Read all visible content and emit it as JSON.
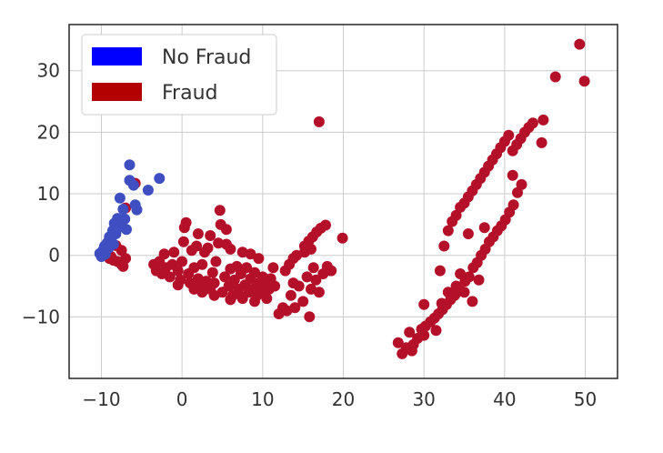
{
  "chart_data": {
    "type": "scatter",
    "title": "",
    "xlabel": "",
    "ylabel": "",
    "xlim": [
      -14,
      54
    ],
    "ylim": [
      -20,
      37.5
    ],
    "x_ticks": [
      -10,
      0,
      10,
      20,
      30,
      40,
      50
    ],
    "x_tick_labels": [
      "−10",
      "0",
      "10",
      "20",
      "30",
      "40",
      "50"
    ],
    "y_ticks": [
      -10,
      0,
      10,
      20,
      30
    ],
    "y_tick_labels": [
      "−10",
      "0",
      "10",
      "20",
      "30"
    ],
    "grid": true,
    "legend": {
      "placement": "top-left",
      "entries": [
        {
          "label": "No Fraud",
          "color": "#0000ff"
        },
        {
          "label": "Fraud",
          "color": "#b30000"
        }
      ]
    },
    "series": [
      {
        "name": "No Fraud",
        "color": "#3f4fc2",
        "points": [
          [
            -10.2,
            0.3
          ],
          [
            -10.0,
            -0.2
          ],
          [
            -9.8,
            0.8
          ],
          [
            -9.6,
            1.5
          ],
          [
            -9.5,
            0.2
          ],
          [
            -9.3,
            2.0
          ],
          [
            -9.1,
            1.2
          ],
          [
            -9.0,
            3.0
          ],
          [
            -8.8,
            2.5
          ],
          [
            -8.6,
            4.0
          ],
          [
            -8.5,
            1.8
          ],
          [
            -8.4,
            5.2
          ],
          [
            -8.2,
            3.5
          ],
          [
            -8.0,
            6.0
          ],
          [
            -7.9,
            4.5
          ],
          [
            -7.7,
            9.3
          ],
          [
            -7.5,
            5.5
          ],
          [
            -7.3,
            7.5
          ],
          [
            -7.1,
            5.9
          ],
          [
            -6.9,
            4.2
          ],
          [
            -6.5,
            14.7
          ],
          [
            -6.5,
            12.2
          ],
          [
            -6.0,
            11.4
          ],
          [
            -5.8,
            8.2
          ],
          [
            -5.6,
            7.4
          ],
          [
            -4.2,
            10.6
          ],
          [
            -2.8,
            12.5
          ]
        ]
      },
      {
        "name": "Fraud",
        "color": "#b5102a",
        "points": [
          [
            -9.5,
            0.5
          ],
          [
            -9.0,
            -0.5
          ],
          [
            -8.5,
            -0.8
          ],
          [
            -8.0,
            -1.0
          ],
          [
            -7.5,
            -1.5
          ],
          [
            -7.0,
            -0.5
          ],
          [
            -7.5,
            0.8
          ],
          [
            -8.2,
            1.6
          ],
          [
            -7.0,
            7.7
          ],
          [
            -5.8,
            11.7
          ],
          [
            -7.3,
            -1.8
          ],
          [
            -8.8,
            -0.2
          ],
          [
            -3.5,
            -1.5
          ],
          [
            -3.2,
            -2.5
          ],
          [
            -2.8,
            -1.0
          ],
          [
            -2.5,
            -3.0
          ],
          [
            -2.2,
            0.2
          ],
          [
            -2.0,
            -2.0
          ],
          [
            -1.5,
            -3.5
          ],
          [
            -1.2,
            -1.5
          ],
          [
            -1.0,
            0.5
          ],
          [
            -0.5,
            -2.5
          ],
          [
            -0.2,
            -4.0
          ],
          [
            0.0,
            -1.0
          ],
          [
            0.2,
            2.2
          ],
          [
            0.3,
            4.5
          ],
          [
            0.5,
            5.3
          ],
          [
            0.8,
            -3.0
          ],
          [
            1.0,
            -4.5
          ],
          [
            1.2,
            0.8
          ],
          [
            1.5,
            -2.0
          ],
          [
            1.8,
            1.5
          ],
          [
            2.0,
            -3.8
          ],
          [
            2.3,
            -5.0
          ],
          [
            2.5,
            -1.5
          ],
          [
            2.8,
            0.5
          ],
          [
            3.0,
            -4.2
          ],
          [
            3.2,
            1.2
          ],
          [
            3.5,
            -5.5
          ],
          [
            3.8,
            -2.8
          ],
          [
            4.0,
            -4.5
          ],
          [
            4.2,
            -1.0
          ],
          [
            4.5,
            2.0
          ],
          [
            4.7,
            7.3
          ],
          [
            4.8,
            5.0
          ],
          [
            5.0,
            -6.0
          ],
          [
            5.3,
            -3.5
          ],
          [
            5.5,
            1.8
          ],
          [
            5.8,
            -5.0
          ],
          [
            6.0,
            -2.2
          ],
          [
            6.3,
            -6.5
          ],
          [
            6.5,
            -4.0
          ],
          [
            6.8,
            -1.8
          ],
          [
            7.0,
            -5.5
          ],
          [
            7.3,
            -3.0
          ],
          [
            7.5,
            -6.8
          ],
          [
            7.8,
            -4.8
          ],
          [
            8.0,
            -2.0
          ],
          [
            8.3,
            -6.0
          ],
          [
            8.5,
            -3.8
          ],
          [
            8.8,
            -5.5
          ],
          [
            9.0,
            -2.8
          ],
          [
            9.3,
            -6.5
          ],
          [
            9.5,
            -4.5
          ],
          [
            9.8,
            -5.8
          ],
          [
            10.0,
            -3.5
          ],
          [
            10.3,
            -6.0
          ],
          [
            10.5,
            -4.5
          ],
          [
            10.8,
            -5.5
          ],
          [
            11.0,
            -3.8
          ],
          [
            11.3,
            -2.0
          ],
          [
            11.5,
            -5.0
          ],
          [
            2.0,
            3.5
          ],
          [
            3.5,
            3.2
          ],
          [
            5.5,
            4.2
          ],
          [
            6.0,
            1.0
          ],
          [
            7.5,
            0.5
          ],
          [
            8.5,
            0.2
          ],
          [
            9.5,
            -0.5
          ],
          [
            -0.5,
            -4.8
          ],
          [
            1.5,
            -5.5
          ],
          [
            2.5,
            -6.0
          ],
          [
            4.0,
            -6.5
          ],
          [
            6.0,
            -7.2
          ],
          [
            7.5,
            -7.0
          ],
          [
            9.0,
            -7.5
          ],
          [
            10.5,
            -7.0
          ],
          [
            12.0,
            -9.5
          ],
          [
            12.5,
            -8.5
          ],
          [
            13.0,
            -9.0
          ],
          [
            13.5,
            -6.5
          ],
          [
            13.8,
            -4.5
          ],
          [
            14.0,
            -8.5
          ],
          [
            14.5,
            -5.0
          ],
          [
            15.0,
            -7.5
          ],
          [
            15.5,
            -3.5
          ],
          [
            15.8,
            -10.0
          ],
          [
            16.0,
            -5.5
          ],
          [
            16.3,
            -2.0
          ],
          [
            16.6,
            -4.0
          ],
          [
            17.0,
            -6.0
          ],
          [
            17.5,
            -3.0
          ],
          [
            18.0,
            -1.8
          ],
          [
            18.5,
            -2.5
          ],
          [
            12.8,
            -2.5
          ],
          [
            13.3,
            -1.5
          ],
          [
            13.8,
            -0.5
          ],
          [
            14.2,
            0.0
          ],
          [
            15.2,
            0.5
          ],
          [
            16.0,
            1.0
          ],
          [
            15.2,
            1.5
          ],
          [
            15.7,
            2.3
          ],
          [
            16.2,
            3.0
          ],
          [
            16.7,
            3.8
          ],
          [
            17.2,
            4.4
          ],
          [
            17.8,
            4.9
          ],
          [
            19.9,
            2.8
          ],
          [
            17.0,
            21.7
          ],
          [
            26.8,
            -14.2
          ],
          [
            27.3,
            -16.0
          ],
          [
            27.8,
            -15.0
          ],
          [
            28.2,
            -12.5
          ],
          [
            28.7,
            -14.5
          ],
          [
            29.2,
            -13.5
          ],
          [
            29.7,
            -12.0
          ],
          [
            30.2,
            -11.5
          ],
          [
            30.8,
            -10.8
          ],
          [
            31.3,
            -10.2
          ],
          [
            31.8,
            -9.5
          ],
          [
            32.3,
            -8.8
          ],
          [
            32.8,
            -8.0
          ],
          [
            33.3,
            -7.2
          ],
          [
            33.8,
            -6.5
          ],
          [
            30.0,
            -8.0
          ],
          [
            31.5,
            -12.2
          ],
          [
            32.2,
            -7.8
          ],
          [
            33.0,
            -6.0
          ],
          [
            34.0,
            -5.0
          ],
          [
            34.6,
            -5.8
          ],
          [
            35.1,
            -4.2
          ],
          [
            35.6,
            -3.5
          ],
          [
            36.1,
            -2.0
          ],
          [
            36.6,
            -1.2
          ],
          [
            37.1,
            0.0
          ],
          [
            37.6,
            1.0
          ],
          [
            38.1,
            2.2
          ],
          [
            38.6,
            3.0
          ],
          [
            39.1,
            4.0
          ],
          [
            39.6,
            4.8
          ],
          [
            40.1,
            5.8
          ],
          [
            40.6,
            7.0
          ],
          [
            41.1,
            8.2
          ],
          [
            41.6,
            10.2
          ],
          [
            42.1,
            11.5
          ],
          [
            41.0,
            13.0
          ],
          [
            35.0,
            -6.0
          ],
          [
            36.0,
            -7.5
          ],
          [
            34.5,
            -3.0
          ],
          [
            36.8,
            -4.0
          ],
          [
            35.5,
            3.5
          ],
          [
            37.5,
            4.5
          ],
          [
            32.5,
            1.5
          ],
          [
            32.0,
            -2.5
          ],
          [
            30.0,
            -13.0
          ],
          [
            28.5,
            -15.5
          ],
          [
            33.0,
            4.0
          ],
          [
            33.5,
            5.5
          ],
          [
            34.0,
            6.5
          ],
          [
            34.5,
            7.8
          ],
          [
            35.0,
            8.5
          ],
          [
            35.5,
            9.5
          ],
          [
            36.0,
            10.5
          ],
          [
            36.5,
            11.5
          ],
          [
            37.0,
            12.5
          ],
          [
            37.5,
            13.5
          ],
          [
            38.0,
            14.5
          ],
          [
            38.5,
            15.5
          ],
          [
            39.0,
            16.5
          ],
          [
            39.5,
            17.5
          ],
          [
            40.0,
            18.5
          ],
          [
            40.5,
            19.5
          ],
          [
            41.0,
            17.0
          ],
          [
            41.5,
            18.0
          ],
          [
            42.0,
            19.0
          ],
          [
            42.5,
            20.0
          ],
          [
            43.0,
            20.8
          ],
          [
            43.5,
            21.5
          ],
          [
            44.8,
            22.0
          ],
          [
            44.6,
            18.3
          ],
          [
            46.3,
            29.0
          ],
          [
            49.3,
            34.3
          ],
          [
            49.9,
            28.3
          ]
        ]
      }
    ]
  }
}
